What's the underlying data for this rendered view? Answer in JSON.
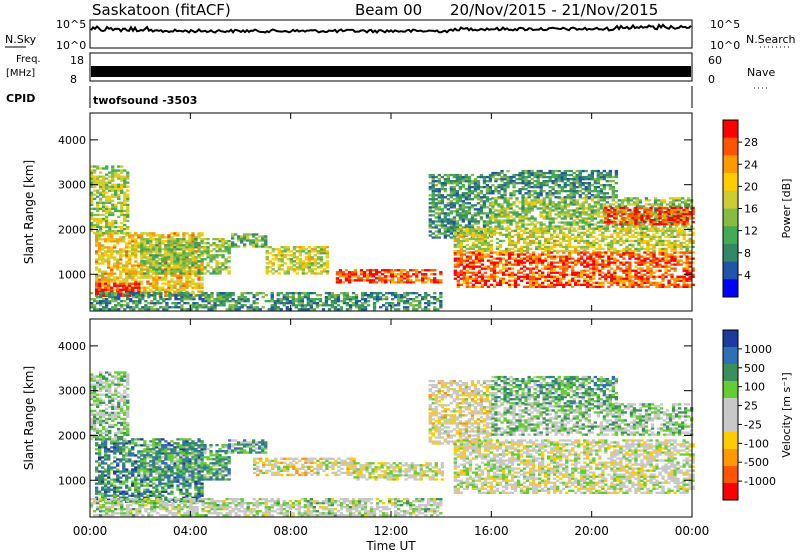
{
  "header": {
    "station": "Saskatoon (fitACF)",
    "beam": "Beam 00",
    "dates": "20/Nov/2015 - 21/Nov/2015"
  },
  "panels": {
    "nsky_label": "N.Sky",
    "nsky_ticks": [
      "10^5",
      "10^0"
    ],
    "nsearch_label": "N.Search",
    "nsearch_ticks": [
      "10^5",
      "10^0"
    ],
    "freq_label_1": "Freq.",
    "freq_label_2": "[MHz]",
    "freq_ticks": [
      "18",
      "8"
    ],
    "nave_label": "Nave",
    "nave_ticks": [
      "60",
      "0"
    ],
    "cpid_label": "CPID",
    "cpid_value": "twofsound -3503"
  },
  "chart_data": [
    {
      "type": "heatmap",
      "name": "power",
      "ylabel": "Slant Range [km]",
      "xlabel": "Time UT",
      "xlim_hours": [
        0,
        24
      ],
      "ylim_km": [
        180,
        4600
      ],
      "yticks": [
        "1000",
        "2000",
        "3000",
        "4000"
      ],
      "xticks": [
        "00:00",
        "04:00",
        "08:00",
        "12:00",
        "16:00",
        "20:00",
        "00:00"
      ],
      "colorbar": {
        "label": "Power [dB]",
        "ticks": [
          "28",
          "24",
          "20",
          "16",
          "12",
          "8",
          "4"
        ],
        "colors": [
          "#ff0000",
          "#ff5500",
          "#ff9900",
          "#ffcc00",
          "#cccc33",
          "#88bb44",
          "#44aa55",
          "#338866",
          "#2255aa",
          "#0000ff"
        ]
      },
      "regions": [
        {
          "t0": 0.2,
          "t1": 4.5,
          "r0": 500,
          "r1": 1900,
          "level": 0.65
        },
        {
          "t0": 0.2,
          "t1": 2.0,
          "r0": 500,
          "r1": 800,
          "level": 0.95
        },
        {
          "t0": 2.0,
          "t1": 5.5,
          "r0": 1000,
          "r1": 1800,
          "level": 0.45
        },
        {
          "t0": 0.0,
          "t1": 1.5,
          "r0": 1900,
          "r1": 3400,
          "level": 0.5
        },
        {
          "t0": 5.5,
          "t1": 7.0,
          "r0": 1600,
          "r1": 1900,
          "level": 0.4
        },
        {
          "t0": 7.0,
          "t1": 9.5,
          "r0": 1000,
          "r1": 1600,
          "level": 0.55
        },
        {
          "t0": 9.8,
          "t1": 12.0,
          "r0": 800,
          "r1": 1100,
          "level": 0.9
        },
        {
          "t0": 12.0,
          "t1": 14.0,
          "r0": 800,
          "r1": 1100,
          "level": 0.85
        },
        {
          "t0": 0.0,
          "t1": 14.0,
          "r0": 200,
          "r1": 600,
          "level": 0.3
        },
        {
          "t0": 13.5,
          "t1": 16.0,
          "r0": 1800,
          "r1": 3200,
          "level": 0.3
        },
        {
          "t0": 14.5,
          "t1": 24.0,
          "r0": 700,
          "r1": 1500,
          "level": 0.85
        },
        {
          "t0": 14.5,
          "t1": 24.0,
          "r0": 1500,
          "r1": 2000,
          "level": 0.55
        },
        {
          "t0": 16.0,
          "t1": 24.0,
          "r0": 2000,
          "r1": 2700,
          "level": 0.45
        },
        {
          "t0": 20.5,
          "t1": 24.0,
          "r0": 2100,
          "r1": 2500,
          "level": 0.9
        },
        {
          "t0": 16.0,
          "t1": 21.0,
          "r0": 2700,
          "r1": 3300,
          "level": 0.3
        }
      ]
    },
    {
      "type": "heatmap",
      "name": "velocity",
      "ylabel": "Slant Range [km]",
      "xlabel": "Time UT",
      "xlim_hours": [
        0,
        24
      ],
      "ylim_km": [
        180,
        4600
      ],
      "yticks": [
        "1000",
        "2000",
        "3000",
        "4000"
      ],
      "xticks": [
        "00:00",
        "04:00",
        "08:00",
        "12:00",
        "16:00",
        "20:00",
        "00:00"
      ],
      "colorbar": {
        "label": "Velocity [m s⁻¹]",
        "ticks": [
          "1000",
          "500",
          "100",
          "25",
          "-25",
          "-100",
          "-500",
          "-1000"
        ],
        "colors": [
          "#1f3a9e",
          "#2f6fb5",
          "#3a8f5a",
          "#66cc33",
          "#c8c8c8",
          "#c8c8c8",
          "#ffcc00",
          "#ff9900",
          "#ff5500",
          "#ff0000"
        ]
      },
      "regions": [
        {
          "t0": 0.2,
          "t1": 4.5,
          "r0": 500,
          "r1": 1900,
          "level": 0.78
        },
        {
          "t0": 2.0,
          "t1": 5.5,
          "r0": 1000,
          "r1": 1800,
          "level": 0.72
        },
        {
          "t0": 0.0,
          "t1": 1.5,
          "r0": 1900,
          "r1": 3400,
          "level": 0.6
        },
        {
          "t0": 5.5,
          "t1": 7.0,
          "r0": 1600,
          "r1": 1900,
          "level": 0.7
        },
        {
          "t0": 6.5,
          "t1": 10.5,
          "r0": 1100,
          "r1": 1500,
          "level": 0.45
        },
        {
          "t0": 10.5,
          "t1": 14.0,
          "r0": 1000,
          "r1": 1400,
          "level": 0.5
        },
        {
          "t0": 0.0,
          "t1": 14.0,
          "r0": 200,
          "r1": 600,
          "level": 0.55
        },
        {
          "t0": 13.5,
          "t1": 16.0,
          "r0": 1800,
          "r1": 3200,
          "level": 0.45
        },
        {
          "t0": 14.5,
          "t1": 24.0,
          "r0": 700,
          "r1": 1900,
          "level": 0.5
        },
        {
          "t0": 16.0,
          "t1": 24.0,
          "r0": 2000,
          "r1": 2700,
          "level": 0.62
        },
        {
          "t0": 16.0,
          "t1": 21.0,
          "r0": 2700,
          "r1": 3300,
          "level": 0.68
        }
      ]
    }
  ]
}
